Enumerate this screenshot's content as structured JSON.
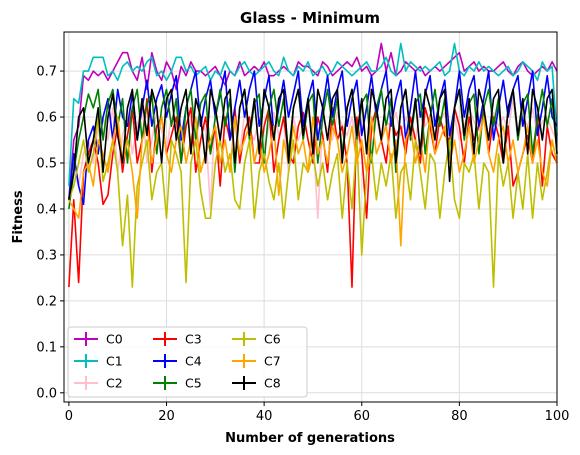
{
  "chart_data": {
    "type": "line",
    "title": "Glass - Minimum",
    "xlabel": "Number of generations",
    "ylabel": "Fitness",
    "xlim": [
      -1,
      100
    ],
    "ylim": [
      -0.02,
      0.785
    ],
    "xticks": [
      0,
      20,
      40,
      60,
      80,
      100
    ],
    "yticks": [
      0.0,
      0.1,
      0.2,
      0.3,
      0.4,
      0.5,
      0.6,
      0.7
    ],
    "grid": true,
    "legend": {
      "location": "lower-left",
      "columns": 3
    },
    "series": [
      {
        "name": "C0",
        "color": "#bf00bf",
        "values": [
          0.42,
          0.55,
          0.58,
          0.69,
          0.68,
          0.7,
          0.69,
          0.7,
          0.68,
          0.7,
          0.72,
          0.74,
          0.74,
          0.7,
          0.68,
          0.73,
          0.66,
          0.74,
          0.7,
          0.68,
          0.72,
          0.7,
          0.66,
          0.71,
          0.69,
          0.72,
          0.7,
          0.7,
          0.69,
          0.7,
          0.71,
          0.69,
          0.67,
          0.7,
          0.69,
          0.72,
          0.69,
          0.7,
          0.71,
          0.7,
          0.72,
          0.69,
          0.69,
          0.7,
          0.71,
          0.7,
          0.69,
          0.72,
          0.71,
          0.71,
          0.7,
          0.69,
          0.72,
          0.71,
          0.69,
          0.7,
          0.71,
          0.72,
          0.71,
          0.73,
          0.7,
          0.71,
          0.69,
          0.7,
          0.76,
          0.7,
          0.74,
          0.69,
          0.7,
          0.72,
          0.71,
          0.7,
          0.71,
          0.69,
          0.7,
          0.71,
          0.7,
          0.71,
          0.72,
          0.73,
          0.74,
          0.7,
          0.71,
          0.72,
          0.7,
          0.71,
          0.7,
          0.7,
          0.71,
          0.72,
          0.7,
          0.69,
          0.71,
          0.72,
          0.7,
          0.69,
          0.7,
          0.71,
          0.7,
          0.72,
          0.7
        ]
      },
      {
        "name": "C1",
        "color": "#00bfbf",
        "values": [
          0.45,
          0.64,
          0.63,
          0.7,
          0.7,
          0.73,
          0.73,
          0.73,
          0.69,
          0.7,
          0.68,
          0.71,
          0.72,
          0.7,
          0.71,
          0.7,
          0.72,
          0.73,
          0.69,
          0.7,
          0.68,
          0.7,
          0.73,
          0.73,
          0.7,
          0.71,
          0.69,
          0.7,
          0.71,
          0.68,
          0.7,
          0.69,
          0.72,
          0.7,
          0.69,
          0.71,
          0.72,
          0.7,
          0.69,
          0.7,
          0.71,
          0.72,
          0.7,
          0.69,
          0.73,
          0.7,
          0.69,
          0.71,
          0.7,
          0.72,
          0.69,
          0.7,
          0.71,
          0.69,
          0.7,
          0.72,
          0.71,
          0.7,
          0.69,
          0.7,
          0.71,
          0.72,
          0.7,
          0.7,
          0.71,
          0.73,
          0.7,
          0.69,
          0.76,
          0.7,
          0.72,
          0.71,
          0.7,
          0.71,
          0.7,
          0.71,
          0.72,
          0.69,
          0.7,
          0.76,
          0.7,
          0.69,
          0.71,
          0.7,
          0.72,
          0.7,
          0.71,
          0.7,
          0.69,
          0.7,
          0.71,
          0.69,
          0.7,
          0.72,
          0.71,
          0.7,
          0.68,
          0.72,
          0.7,
          0.71,
          0.56
        ]
      },
      {
        "name": "C2",
        "color": "#ffc0cb",
        "values": [
          0.42,
          0.48,
          0.45,
          0.52,
          0.55,
          0.5,
          0.58,
          0.6,
          0.55,
          0.62,
          0.48,
          0.56,
          0.6,
          0.52,
          0.58,
          0.63,
          0.5,
          0.55,
          0.61,
          0.57,
          0.53,
          0.6,
          0.58,
          0.54,
          0.62,
          0.59,
          0.55,
          0.6,
          0.57,
          0.4,
          0.62,
          0.56,
          0.6,
          0.55,
          0.58,
          0.52,
          0.61,
          0.57,
          0.55,
          0.6,
          0.53,
          0.58,
          0.61,
          0.56,
          0.59,
          0.48,
          0.6,
          0.55,
          0.58,
          0.62,
          0.56,
          0.38,
          0.6,
          0.57,
          0.55,
          0.61,
          0.58,
          0.56,
          0.6,
          0.54,
          0.58,
          0.62,
          0.57,
          0.6,
          0.55,
          0.59,
          0.58,
          0.61,
          0.56,
          0.6,
          0.57,
          0.55,
          0.62,
          0.58,
          0.6,
          0.56,
          0.59,
          0.61,
          0.57,
          0.6,
          0.55,
          0.58,
          0.62,
          0.59,
          0.57,
          0.6,
          0.56,
          0.61,
          0.58,
          0.6,
          0.57,
          0.64,
          0.55,
          0.6,
          0.58,
          0.62,
          0.56,
          0.59,
          0.6,
          0.57,
          0.55
        ]
      },
      {
        "name": "C3",
        "color": "#ff0000",
        "values": [
          0.23,
          0.42,
          0.24,
          0.48,
          0.52,
          0.55,
          0.5,
          0.41,
          0.43,
          0.52,
          0.58,
          0.48,
          0.56,
          0.62,
          0.5,
          0.55,
          0.64,
          0.48,
          0.58,
          0.6,
          0.52,
          0.56,
          0.6,
          0.5,
          0.58,
          0.62,
          0.48,
          0.55,
          0.6,
          0.52,
          0.58,
          0.45,
          0.6,
          0.55,
          0.62,
          0.5,
          0.57,
          0.6,
          0.5,
          0.5,
          0.58,
          0.62,
          0.48,
          0.55,
          0.6,
          0.52,
          0.5,
          0.58,
          0.61,
          0.55,
          0.5,
          0.6,
          0.56,
          0.48,
          0.62,
          0.55,
          0.58,
          0.5,
          0.23,
          0.6,
          0.52,
          0.38,
          0.58,
          0.62,
          0.55,
          0.5,
          0.6,
          0.56,
          0.58,
          0.52,
          0.6,
          0.55,
          0.5,
          0.62,
          0.58,
          0.52,
          0.6,
          0.56,
          0.55,
          0.62,
          0.58,
          0.5,
          0.6,
          0.55,
          0.58,
          0.62,
          0.52,
          0.6,
          0.56,
          0.5,
          0.58,
          0.45,
          0.48,
          0.52,
          0.56,
          0.5,
          0.6,
          0.45,
          0.58,
          0.52,
          0.5
        ]
      },
      {
        "name": "C4",
        "color": "#0000ff",
        "values": [
          0.42,
          0.52,
          0.45,
          0.41,
          0.55,
          0.58,
          0.52,
          0.6,
          0.64,
          0.55,
          0.66,
          0.6,
          0.58,
          0.65,
          0.55,
          0.62,
          0.68,
          0.58,
          0.64,
          0.67,
          0.6,
          0.65,
          0.69,
          0.55,
          0.62,
          0.66,
          0.7,
          0.58,
          0.64,
          0.68,
          0.6,
          0.65,
          0.7,
          0.55,
          0.62,
          0.68,
          0.6,
          0.66,
          0.7,
          0.58,
          0.64,
          0.69,
          0.56,
          0.62,
          0.68,
          0.6,
          0.65,
          0.7,
          0.58,
          0.64,
          0.68,
          0.55,
          0.62,
          0.69,
          0.6,
          0.66,
          0.7,
          0.58,
          0.64,
          0.68,
          0.56,
          0.62,
          0.69,
          0.6,
          0.66,
          0.7,
          0.58,
          0.64,
          0.68,
          0.55,
          0.62,
          0.7,
          0.6,
          0.65,
          0.69,
          0.58,
          0.64,
          0.68,
          0.56,
          0.62,
          0.7,
          0.6,
          0.66,
          0.69,
          0.58,
          0.64,
          0.7,
          0.55,
          0.62,
          0.68,
          0.6,
          0.66,
          0.69,
          0.58,
          0.64,
          0.7,
          0.56,
          0.62,
          0.69,
          0.6,
          0.58
        ]
      },
      {
        "name": "C5",
        "color": "#008000",
        "values": [
          0.4,
          0.48,
          0.55,
          0.6,
          0.65,
          0.62,
          0.66,
          0.55,
          0.63,
          0.66,
          0.58,
          0.64,
          0.5,
          0.62,
          0.66,
          0.55,
          0.63,
          0.65,
          0.52,
          0.62,
          0.66,
          0.58,
          0.64,
          0.5,
          0.62,
          0.66,
          0.55,
          0.63,
          0.65,
          0.52,
          0.6,
          0.66,
          0.58,
          0.64,
          0.48,
          0.62,
          0.66,
          0.55,
          0.63,
          0.65,
          0.5,
          0.62,
          0.66,
          0.58,
          0.64,
          0.52,
          0.62,
          0.66,
          0.55,
          0.63,
          0.65,
          0.5,
          0.6,
          0.66,
          0.58,
          0.64,
          0.52,
          0.62,
          0.66,
          0.55,
          0.63,
          0.65,
          0.5,
          0.62,
          0.66,
          0.58,
          0.64,
          0.48,
          0.62,
          0.66,
          0.55,
          0.63,
          0.65,
          0.52,
          0.6,
          0.66,
          0.58,
          0.64,
          0.5,
          0.62,
          0.66,
          0.55,
          0.63,
          0.65,
          0.52,
          0.62,
          0.66,
          0.58,
          0.64,
          0.5,
          0.62,
          0.66,
          0.55,
          0.63,
          0.65,
          0.52,
          0.6,
          0.66,
          0.58,
          0.64,
          0.52
        ]
      },
      {
        "name": "C6",
        "color": "#bfbf00",
        "values": [
          0.42,
          0.45,
          0.5,
          0.55,
          0.48,
          0.52,
          0.6,
          0.46,
          0.5,
          0.55,
          0.48,
          0.32,
          0.43,
          0.23,
          0.45,
          0.5,
          0.55,
          0.42,
          0.48,
          0.5,
          0.38,
          0.55,
          0.52,
          0.48,
          0.24,
          0.5,
          0.55,
          0.44,
          0.38,
          0.38,
          0.5,
          0.55,
          0.48,
          0.52,
          0.42,
          0.4,
          0.5,
          0.55,
          0.38,
          0.48,
          0.52,
          0.46,
          0.42,
          0.5,
          0.38,
          0.48,
          0.55,
          0.42,
          0.5,
          0.48,
          0.52,
          0.45,
          0.5,
          0.42,
          0.48,
          0.52,
          0.38,
          0.5,
          0.4,
          0.55,
          0.3,
          0.48,
          0.52,
          0.42,
          0.5,
          0.45,
          0.52,
          0.38,
          0.48,
          0.5,
          0.42,
          0.55,
          0.48,
          0.4,
          0.52,
          0.5,
          0.38,
          0.48,
          0.55,
          0.42,
          0.38,
          0.5,
          0.48,
          0.52,
          0.4,
          0.5,
          0.48,
          0.23,
          0.52,
          0.45,
          0.5,
          0.38,
          0.48,
          0.4,
          0.52,
          0.38,
          0.5,
          0.42,
          0.48,
          0.55,
          0.5
        ]
      },
      {
        "name": "C7",
        "color": "#ffa500",
        "values": [
          0.42,
          0.4,
          0.38,
          0.48,
          0.5,
          0.45,
          0.55,
          0.52,
          0.48,
          0.55,
          0.6,
          0.5,
          0.55,
          0.48,
          0.38,
          0.55,
          0.58,
          0.5,
          0.55,
          0.6,
          0.52,
          0.48,
          0.55,
          0.58,
          0.5,
          0.55,
          0.6,
          0.48,
          0.52,
          0.55,
          0.58,
          0.5,
          0.55,
          0.48,
          0.6,
          0.52,
          0.55,
          0.58,
          0.5,
          0.55,
          0.48,
          0.52,
          0.58,
          0.43,
          0.55,
          0.5,
          0.58,
          0.52,
          0.55,
          0.48,
          0.6,
          0.52,
          0.55,
          0.5,
          0.58,
          0.55,
          0.48,
          0.52,
          0.58,
          0.5,
          0.55,
          0.48,
          0.6,
          0.52,
          0.55,
          0.58,
          0.5,
          0.55,
          0.32,
          0.55,
          0.58,
          0.5,
          0.55,
          0.48,
          0.6,
          0.52,
          0.55,
          0.58,
          0.5,
          0.55,
          0.48,
          0.52,
          0.58,
          0.5,
          0.55,
          0.6,
          0.52,
          0.48,
          0.55,
          0.58,
          0.5,
          0.55,
          0.48,
          0.52,
          0.58,
          0.5,
          0.55,
          0.48,
          0.45,
          0.55,
          0.5
        ]
      },
      {
        "name": "C8",
        "color": "#000000",
        "values": [
          0.42,
          0.48,
          0.6,
          0.62,
          0.5,
          0.55,
          0.62,
          0.48,
          0.6,
          0.65,
          0.56,
          0.5,
          0.62,
          0.66,
          0.55,
          0.64,
          0.56,
          0.66,
          0.62,
          0.5,
          0.64,
          0.66,
          0.55,
          0.62,
          0.66,
          0.52,
          0.64,
          0.6,
          0.5,
          0.66,
          0.62,
          0.55,
          0.64,
          0.66,
          0.5,
          0.62,
          0.66,
          0.56,
          0.64,
          0.52,
          0.66,
          0.62,
          0.55,
          0.64,
          0.66,
          0.5,
          0.62,
          0.66,
          0.56,
          0.64,
          0.52,
          0.66,
          0.62,
          0.55,
          0.64,
          0.66,
          0.5,
          0.62,
          0.66,
          0.56,
          0.64,
          0.52,
          0.66,
          0.62,
          0.55,
          0.64,
          0.66,
          0.5,
          0.62,
          0.66,
          0.56,
          0.64,
          0.52,
          0.66,
          0.62,
          0.55,
          0.64,
          0.66,
          0.46,
          0.62,
          0.66,
          0.56,
          0.64,
          0.52,
          0.66,
          0.62,
          0.55,
          0.64,
          0.66,
          0.5,
          0.62,
          0.66,
          0.56,
          0.64,
          0.52,
          0.66,
          0.62,
          0.55,
          0.64,
          0.66,
          0.52
        ]
      }
    ]
  }
}
